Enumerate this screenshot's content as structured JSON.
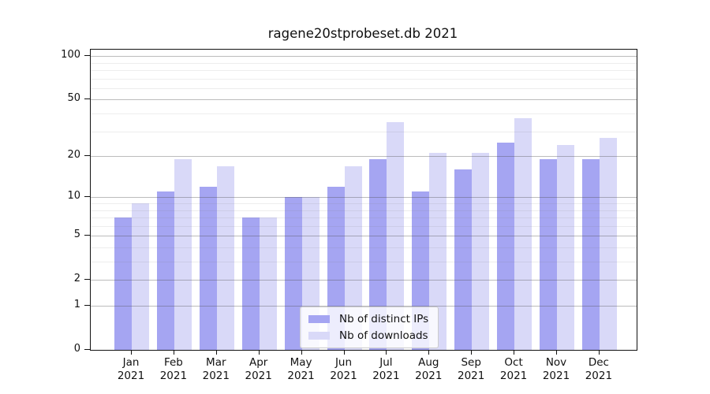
{
  "title": "ragene20stprobeset.db 2021",
  "chart_data": {
    "type": "bar",
    "title": "ragene20stprobeset.db 2021",
    "categories": [
      "Jan",
      "Feb",
      "Mar",
      "Apr",
      "May",
      "Jun",
      "Jul",
      "Aug",
      "Sep",
      "Oct",
      "Nov",
      "Dec"
    ],
    "year": "2021",
    "series": [
      {
        "name": "Nb of distinct IPs",
        "color": "#a5a5f2",
        "values": [
          7,
          11,
          12,
          7,
          10,
          12,
          19,
          11,
          16,
          25,
          19,
          19
        ]
      },
      {
        "name": "Nb of downloads",
        "color": "#d9d9f8",
        "values": [
          9,
          19,
          17,
          7,
          10,
          17,
          35,
          21,
          21,
          37,
          24,
          27
        ]
      }
    ],
    "y_axis": {
      "scale": "log1p",
      "major_ticks": [
        0,
        1,
        2,
        5,
        10,
        20,
        50,
        100
      ],
      "minor_ticks": [
        3,
        4,
        6,
        7,
        8,
        9,
        30,
        40,
        60,
        70,
        80,
        90
      ],
      "ylim": [
        0,
        112
      ]
    },
    "xlabel": "",
    "ylabel": "",
    "grid": true,
    "legend_position": "bottom-center"
  },
  "colors": {
    "major_grid": "rgba(80,80,80,0.38)",
    "minor_grid": "rgba(130,130,130,0.14)",
    "axis": "#111111",
    "background": "#ffffff"
  }
}
